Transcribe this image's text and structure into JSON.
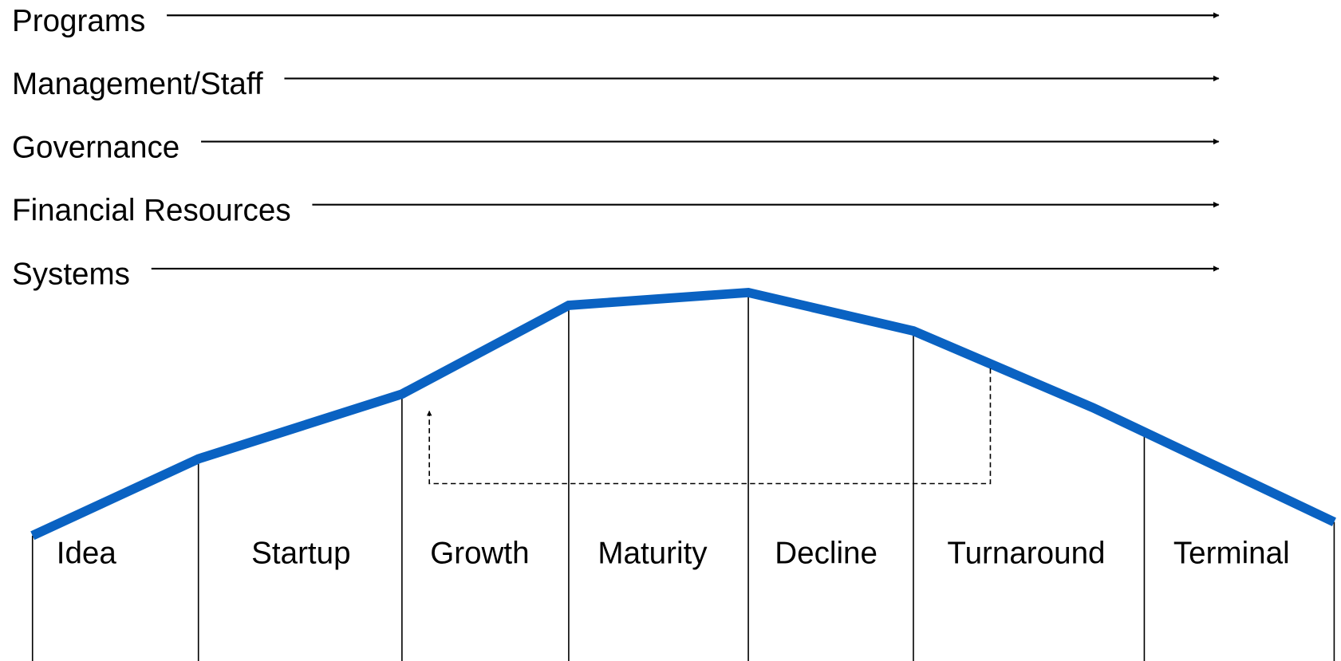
{
  "factors": [
    "Programs",
    "Management/Staff",
    "Governance",
    "Financial Resources",
    "Systems"
  ],
  "stages": [
    "Idea",
    "Startup",
    "Growth",
    "Maturity",
    "Decline",
    "Turnaround",
    "Terminal"
  ]
}
